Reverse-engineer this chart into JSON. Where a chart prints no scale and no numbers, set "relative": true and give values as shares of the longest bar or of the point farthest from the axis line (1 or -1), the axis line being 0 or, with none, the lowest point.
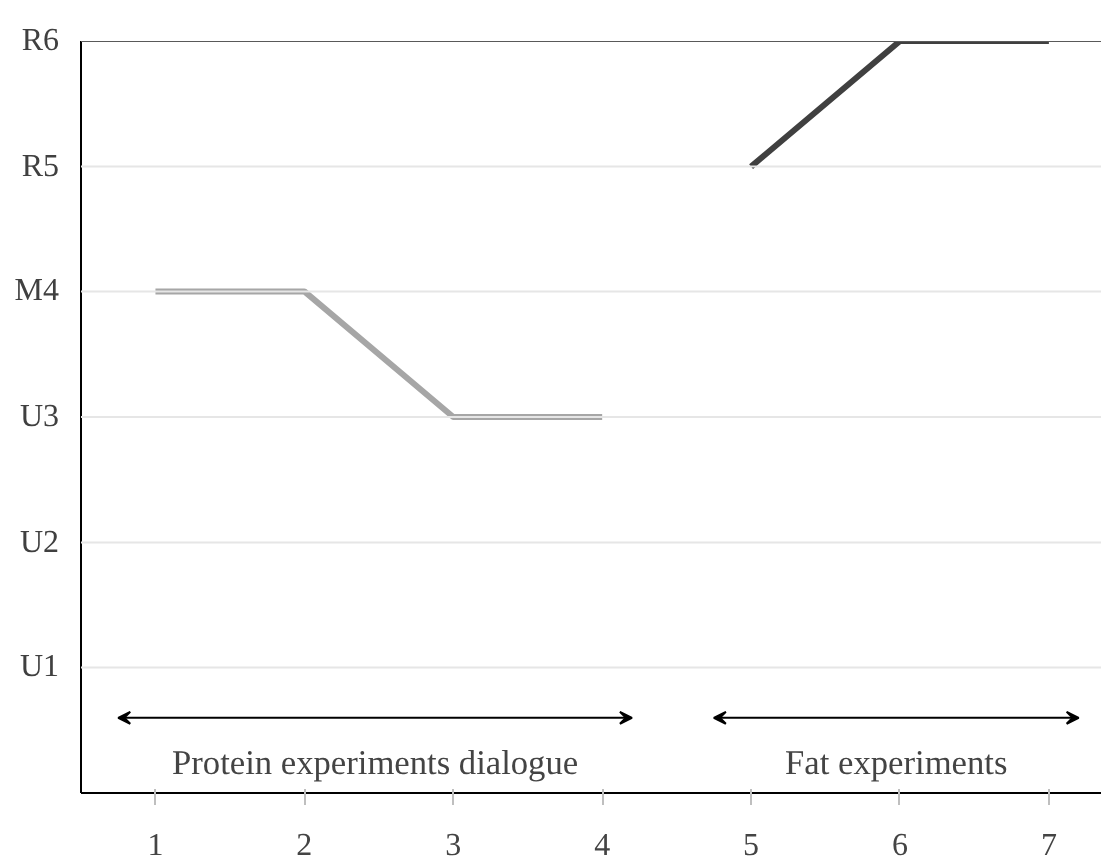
{
  "chart_data": {
    "type": "line",
    "categories": [
      "1",
      "2",
      "3",
      "4",
      "5",
      "6",
      "7"
    ],
    "relative": true,
    "series": [
      {
        "color": "#a6a6a6",
        "values": [
          0.667,
          0.667,
          0.5,
          0.5,
          null,
          null,
          null
        ]
      },
      {
        "color": "#404040",
        "values": [
          null,
          null,
          null,
          null,
          0.833,
          1,
          1
        ]
      }
    ],
    "ref_lines": [
      {
        "axis": "y",
        "value": 0.167,
        "label": "U1",
        "color": "#e6e6e6"
      },
      {
        "axis": "y",
        "value": 0.333,
        "label": "U2",
        "color": "#e6e6e6"
      },
      {
        "axis": "y",
        "value": 0.5,
        "label": "U3",
        "color": "#e6e6e6"
      },
      {
        "axis": "y",
        "value": 0.667,
        "label": "M4",
        "color": "#e6e6e6"
      },
      {
        "axis": "y",
        "value": 0.833,
        "label": "R5",
        "color": "#e6e6e6"
      },
      {
        "axis": "y",
        "value": 1,
        "label": "R6",
        "color": "#595959"
      }
    ],
    "annotations": [
      "Protein experiments dialogue",
      "Fat experiments"
    ]
  }
}
